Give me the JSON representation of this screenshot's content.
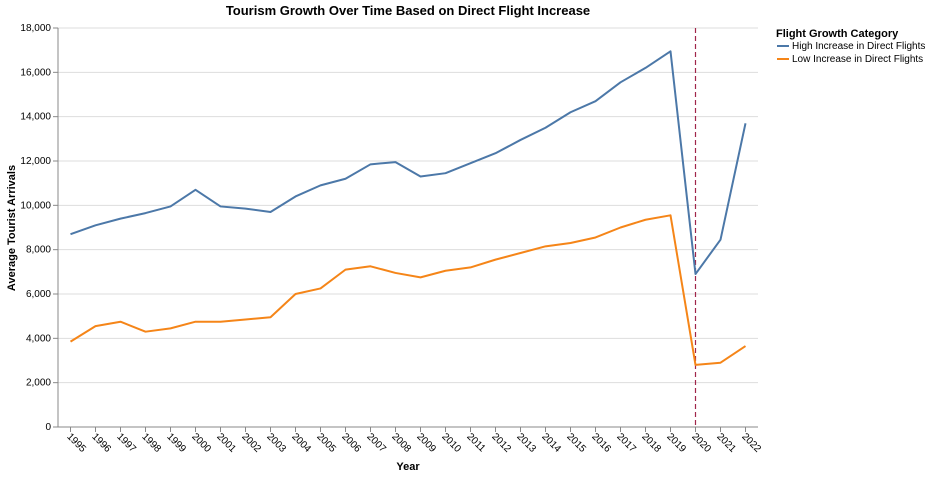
{
  "chart_data": {
    "type": "line",
    "title": "Tourism Growth Over Time Based on Direct Flight Increase",
    "xlabel": "Year",
    "ylabel": "Average Tourist Arrivals",
    "ylim": [
      0,
      18000
    ],
    "yticks": [
      0,
      2000,
      4000,
      6000,
      8000,
      10000,
      12000,
      14000,
      16000,
      18000
    ],
    "ytick_labels": [
      "0",
      "2,000",
      "4,000",
      "6,000",
      "8,000",
      "10,000",
      "12,000",
      "14,000",
      "16,000",
      "18,000"
    ],
    "categories": [
      "1995",
      "1996",
      "1997",
      "1998",
      "1999",
      "2000",
      "2001",
      "2002",
      "2003",
      "2004",
      "2005",
      "2006",
      "2007",
      "2008",
      "2009",
      "2010",
      "2011",
      "2012",
      "2013",
      "2014",
      "2015",
      "2016",
      "2017",
      "2018",
      "2019",
      "2020",
      "2021",
      "2022"
    ],
    "series": [
      {
        "name": "High Increase in Direct Flights",
        "color": "#4c78a8",
        "values": [
          8700,
          9100,
          9400,
          9650,
          9950,
          10700,
          9950,
          9850,
          9700,
          10400,
          10900,
          11200,
          11850,
          11950,
          11300,
          11450,
          11900,
          12350,
          12950,
          13500,
          14200,
          14700,
          15550,
          16200,
          16950,
          6900,
          8450,
          13700
        ]
      },
      {
        "name": "Low Increase in Direct Flights",
        "color": "#f58518",
        "values": [
          3850,
          4550,
          4750,
          4300,
          4450,
          4750,
          4750,
          4850,
          4950,
          6000,
          6250,
          7100,
          7250,
          6950,
          6750,
          7050,
          7200,
          7550,
          7850,
          8150,
          8300,
          8550,
          9000,
          9350,
          9550,
          2800,
          2900,
          3650
        ]
      }
    ],
    "reference_line": {
      "x": "2020",
      "color": "#a0264a",
      "style": "dashed"
    },
    "grid": true,
    "legend": {
      "title": "Flight Growth Category",
      "placement": "right"
    }
  }
}
